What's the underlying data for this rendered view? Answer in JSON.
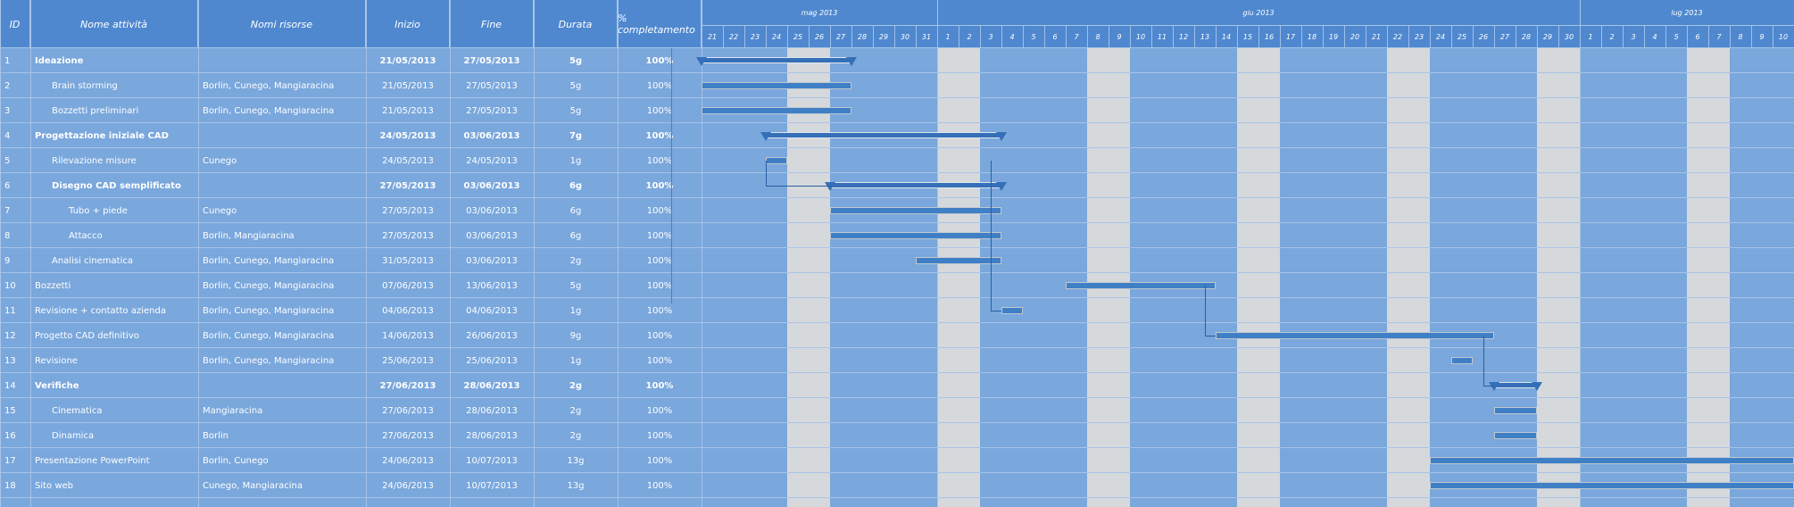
{
  "table": {
    "headers": {
      "id": "ID",
      "name": "Nome attività",
      "resources": "Nomi risorse",
      "start": "Inizio",
      "end": "Fine",
      "duration": "Durata",
      "complete": "% completamento"
    },
    "rows": [
      {
        "id": "1",
        "name": "Ideazione",
        "resources": "",
        "start": "21/05/2013",
        "end": "27/05/2013",
        "duration": "5g",
        "complete": "100%",
        "bold": true,
        "indent": 0
      },
      {
        "id": "2",
        "name": "Brain storming",
        "resources": "Borlin, Cunego, Mangiaracina",
        "start": "21/05/2013",
        "end": "27/05/2013",
        "duration": "5g",
        "complete": "100%",
        "bold": false,
        "indent": 1
      },
      {
        "id": "3",
        "name": "Bozzetti preliminari",
        "resources": "Borlin, Cunego, Mangiaracina",
        "start": "21/05/2013",
        "end": "27/05/2013",
        "duration": "5g",
        "complete": "100%",
        "bold": false,
        "indent": 1
      },
      {
        "id": "4",
        "name": "Progettazione iniziale CAD",
        "resources": "",
        "start": "24/05/2013",
        "end": "03/06/2013",
        "duration": "7g",
        "complete": "100%",
        "bold": true,
        "indent": 0
      },
      {
        "id": "5",
        "name": "Rilevazione misure",
        "resources": "Cunego",
        "start": "24/05/2013",
        "end": "24/05/2013",
        "duration": "1g",
        "complete": "100%",
        "bold": false,
        "indent": 1
      },
      {
        "id": "6",
        "name": "Disegno CAD semplificato",
        "resources": "",
        "start": "27/05/2013",
        "end": "03/06/2013",
        "duration": "6g",
        "complete": "100%",
        "bold": true,
        "indent": 1
      },
      {
        "id": "7",
        "name": "Tubo + piede",
        "resources": "Cunego",
        "start": "27/05/2013",
        "end": "03/06/2013",
        "duration": "6g",
        "complete": "100%",
        "bold": false,
        "indent": 2
      },
      {
        "id": "8",
        "name": "Attacco",
        "resources": "Borlin, Mangiaracina",
        "start": "27/05/2013",
        "end": "03/06/2013",
        "duration": "6g",
        "complete": "100%",
        "bold": false,
        "indent": 2
      },
      {
        "id": "9",
        "name": "Analisi cinematica",
        "resources": "Borlin, Cunego, Mangiaracina",
        "start": "31/05/2013",
        "end": "03/06/2013",
        "duration": "2g",
        "complete": "100%",
        "bold": false,
        "indent": 1
      },
      {
        "id": "10",
        "name": "Bozzetti",
        "resources": "Borlin, Cunego, Mangiaracina",
        "start": "07/06/2013",
        "end": "13/06/2013",
        "duration": "5g",
        "complete": "100%",
        "bold": false,
        "indent": 0
      },
      {
        "id": "11",
        "name": "Revisione + contatto azienda",
        "resources": "Borlin, Cunego, Mangiaracina",
        "start": "04/06/2013",
        "end": "04/06/2013",
        "duration": "1g",
        "complete": "100%",
        "bold": false,
        "indent": 0
      },
      {
        "id": "12",
        "name": "Progetto CAD definitivo",
        "resources": "Borlin, Cunego, Mangiaracina",
        "start": "14/06/2013",
        "end": "26/06/2013",
        "duration": "9g",
        "complete": "100%",
        "bold": false,
        "indent": 0
      },
      {
        "id": "13",
        "name": "Revisione",
        "resources": "Borlin, Cunego, Mangiaracina",
        "start": "25/06/2013",
        "end": "25/06/2013",
        "duration": "1g",
        "complete": "100%",
        "bold": false,
        "indent": 0
      },
      {
        "id": "14",
        "name": "Verifiche",
        "resources": "",
        "start": "27/06/2013",
        "end": "28/06/2013",
        "duration": "2g",
        "complete": "100%",
        "bold": true,
        "indent": 0
      },
      {
        "id": "15",
        "name": "Cinematica",
        "resources": "Mangiaracina",
        "start": "27/06/2013",
        "end": "28/06/2013",
        "duration": "2g",
        "complete": "100%",
        "bold": false,
        "indent": 1
      },
      {
        "id": "16",
        "name": "Dinamica",
        "resources": "Borlin",
        "start": "27/06/2013",
        "end": "28/06/2013",
        "duration": "2g",
        "complete": "100%",
        "bold": false,
        "indent": 1
      },
      {
        "id": "17",
        "name": "Presentazione PowerPoint",
        "resources": "Borlin, Cunego",
        "start": "24/06/2013",
        "end": "10/07/2013",
        "duration": "13g",
        "complete": "100%",
        "bold": false,
        "indent": 0
      },
      {
        "id": "18",
        "name": "Sito web",
        "resources": "Cunego, Mangiaracina",
        "start": "24/06/2013",
        "end": "10/07/2013",
        "duration": "13g",
        "complete": "100%",
        "bold": false,
        "indent": 0
      }
    ]
  },
  "timeline": {
    "months": [
      {
        "label": "mag 2013",
        "start_day": 0,
        "days": 11
      },
      {
        "label": "giu 2013",
        "start_day": 11,
        "days": 30
      },
      {
        "label": "lug 2013",
        "start_day": 41,
        "days": 10
      }
    ],
    "days": [
      "21",
      "22",
      "23",
      "24",
      "25",
      "26",
      "27",
      "28",
      "29",
      "30",
      "31",
      "1",
      "2",
      "3",
      "4",
      "5",
      "6",
      "7",
      "8",
      "9",
      "10",
      "11",
      "12",
      "13",
      "14",
      "15",
      "16",
      "17",
      "18",
      "19",
      "20",
      "21",
      "22",
      "23",
      "24",
      "25",
      "26",
      "27",
      "28",
      "29",
      "30",
      "1",
      "2",
      "3",
      "4",
      "5",
      "6",
      "7",
      "8",
      "9",
      "10"
    ],
    "weekend_days": [
      4,
      5,
      11,
      12,
      18,
      19,
      25,
      26,
      32,
      33,
      39,
      40,
      46,
      47
    ],
    "tasks": [
      {
        "row": 0,
        "start": 0,
        "end": 7,
        "summary": true
      },
      {
        "row": 1,
        "start": 0,
        "end": 7
      },
      {
        "row": 2,
        "start": 0,
        "end": 7
      },
      {
        "row": 3,
        "start": 3,
        "end": 14,
        "summary": true
      },
      {
        "row": 4,
        "start": 3,
        "end": 4
      },
      {
        "row": 5,
        "start": 6,
        "end": 14,
        "summary": true
      },
      {
        "row": 6,
        "start": 6,
        "end": 14
      },
      {
        "row": 7,
        "start": 6,
        "end": 14
      },
      {
        "row": 8,
        "start": 10,
        "end": 14
      },
      {
        "row": 9,
        "start": 17,
        "end": 24
      },
      {
        "row": 10,
        "start": 14,
        "end": 15
      },
      {
        "row": 11,
        "start": 24,
        "end": 37
      },
      {
        "row": 12,
        "start": 35,
        "end": 36
      },
      {
        "row": 13,
        "start": 37,
        "end": 39,
        "summary": true
      },
      {
        "row": 14,
        "start": 37,
        "end": 39
      },
      {
        "row": 15,
        "start": 37,
        "end": 39
      },
      {
        "row": 16,
        "start": 34,
        "end": 51
      },
      {
        "row": 17,
        "start": 34,
        "end": 51
      }
    ]
  }
}
